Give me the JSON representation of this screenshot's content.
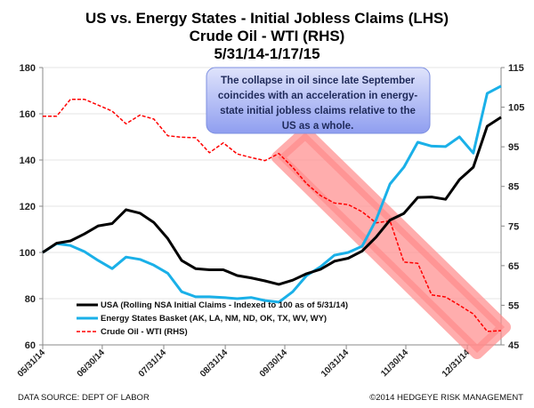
{
  "chart_data": {
    "type": "line",
    "title": [
      "US vs. Energy States - Initial Jobless Claims (LHS)",
      "Crude Oil - WTI (RHS)",
      "5/31/14-1/17/15"
    ],
    "x_tick_labels": [
      "05/31/14",
      "06/30/14",
      "07/31/14",
      "08/31/14",
      "09/30/14",
      "10/31/14",
      "11/30/14",
      "12/31/14"
    ],
    "x_range": [
      "5/31/14",
      "1/17/15"
    ],
    "frequency": "weekly",
    "ylim_left": [
      60,
      180
    ],
    "yticks_left": [
      60,
      80,
      100,
      120,
      140,
      160,
      180
    ],
    "ylim_right": [
      45,
      115
    ],
    "yticks_right": [
      45,
      55,
      65,
      75,
      85,
      95,
      105,
      115
    ],
    "grid": true,
    "legend_placement": "bottom-left",
    "series": [
      {
        "name": "USA (Rolling NSA Initial Claims - Indexed to 100 as of 5/31/14)",
        "axis": "left",
        "color": "#000000",
        "style": "solid",
        "values": [
          100,
          104,
          105,
          108,
          111.5,
          112.5,
          118.5,
          117,
          113,
          106,
          96.5,
          93,
          92.5,
          92.5,
          90,
          89,
          87.7,
          86.2,
          88,
          90.8,
          92.7,
          96.2,
          97.5,
          100.6,
          106.6,
          114,
          116.9,
          123.8,
          124,
          123,
          131.5,
          136.9,
          154.6,
          158.5
        ]
      },
      {
        "name": "Energy States Basket (AK, LA, NM, ND, OK, TX, WV, WY)",
        "axis": "left",
        "color": "#1ab0e8",
        "style": "solid",
        "values": [
          100,
          103.8,
          103,
          100.4,
          96.5,
          93,
          98,
          97,
          94.5,
          91,
          83,
          80.8,
          80.8,
          80.5,
          80,
          80.5,
          79.2,
          78.5,
          83,
          90,
          93.8,
          98.8,
          100,
          102.7,
          114,
          129.6,
          136.9,
          147.7,
          146,
          145.8,
          150,
          143,
          168.8,
          172
        ]
      },
      {
        "name": "Crude Oil - WTI (RHS)",
        "axis": "right",
        "color": "#ff0000",
        "style": "dashed",
        "values": [
          102.7,
          102.7,
          107,
          107,
          105.5,
          104,
          100.8,
          103,
          102,
          97.8,
          97.4,
          97.3,
          93.5,
          96,
          93.2,
          92.3,
          91.5,
          93.3,
          89.8,
          85.7,
          82.7,
          80.8,
          80.4,
          78.6,
          75.8,
          76.3,
          65.9,
          65.6,
          57.6,
          57.1,
          55,
          52.8,
          48.4,
          48.6
        ]
      }
    ],
    "annotation": [
      "The collapse in oil since late September",
      "coincides with an acceleration in energy-",
      "state initial jobless claims relative to the",
      "US as a whole."
    ],
    "highlight_color": "#ff8a8a"
  },
  "footer": {
    "source": "DATA SOURCE:  DEPT  OF  LABOR",
    "copyright": "©2014 HEDGEYE  RISK  MANAGEMENT"
  }
}
